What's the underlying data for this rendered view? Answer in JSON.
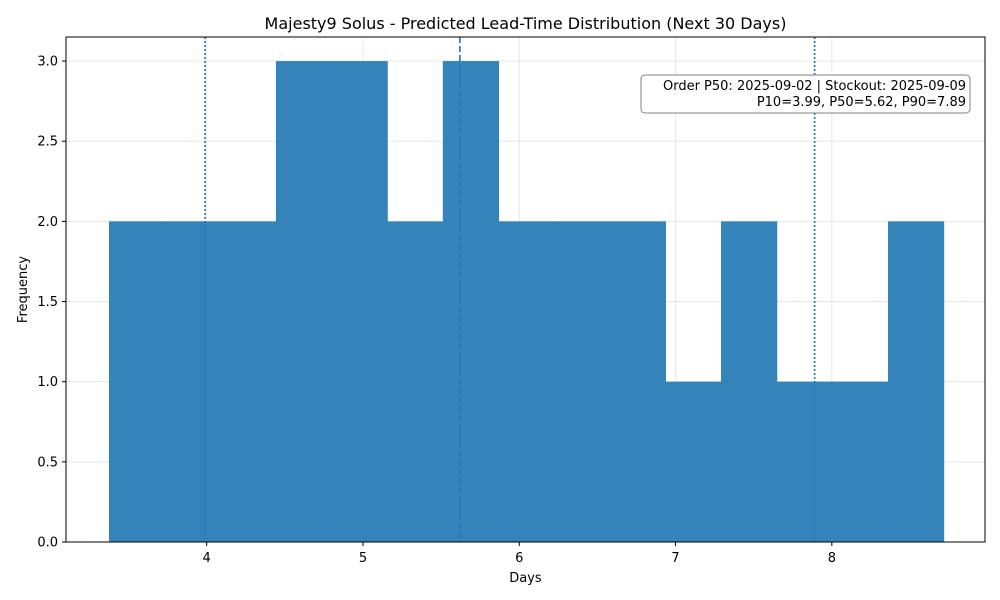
{
  "chart_data": {
    "type": "bar",
    "title": "Majesty9 Solus - Predicted Lead-Time Distribution (Next 30 Days)",
    "xlabel": "Days",
    "ylabel": "Frequency",
    "xlim": [
      3.1,
      8.98
    ],
    "ylim": [
      0,
      3.15
    ],
    "xticks": [
      4,
      5,
      6,
      7,
      8
    ],
    "yticks": [
      "0.0",
      "0.5",
      "1.0",
      "1.5",
      "2.0",
      "2.5",
      "3.0"
    ],
    "grid": true,
    "bar_color": "#3583bb",
    "bin_edges": [
      3.375,
      3.731,
      4.087,
      4.443,
      4.799,
      5.155,
      5.511,
      5.867,
      6.223,
      6.579,
      6.935,
      7.291,
      7.647,
      8.003,
      8.359,
      8.715
    ],
    "frequencies": [
      2,
      2,
      2,
      3,
      3,
      2,
      3,
      2,
      2,
      2,
      1,
      2,
      1,
      1,
      2
    ],
    "reference_lines": [
      {
        "name": "P10",
        "x": 3.99,
        "style": "dotted",
        "color": "#1f77b4"
      },
      {
        "name": "P50",
        "x": 5.62,
        "style": "dashed",
        "color": "#1f77b4"
      },
      {
        "name": "P90",
        "x": 7.89,
        "style": "dotted",
        "color": "#1f77b4"
      }
    ],
    "annotation": {
      "line1": "Order P50: 2025-09-02 | Stockout: 2025-09-09",
      "line2": "P10=3.99, P50=5.62, P90=7.89",
      "placement": "top-right"
    }
  }
}
